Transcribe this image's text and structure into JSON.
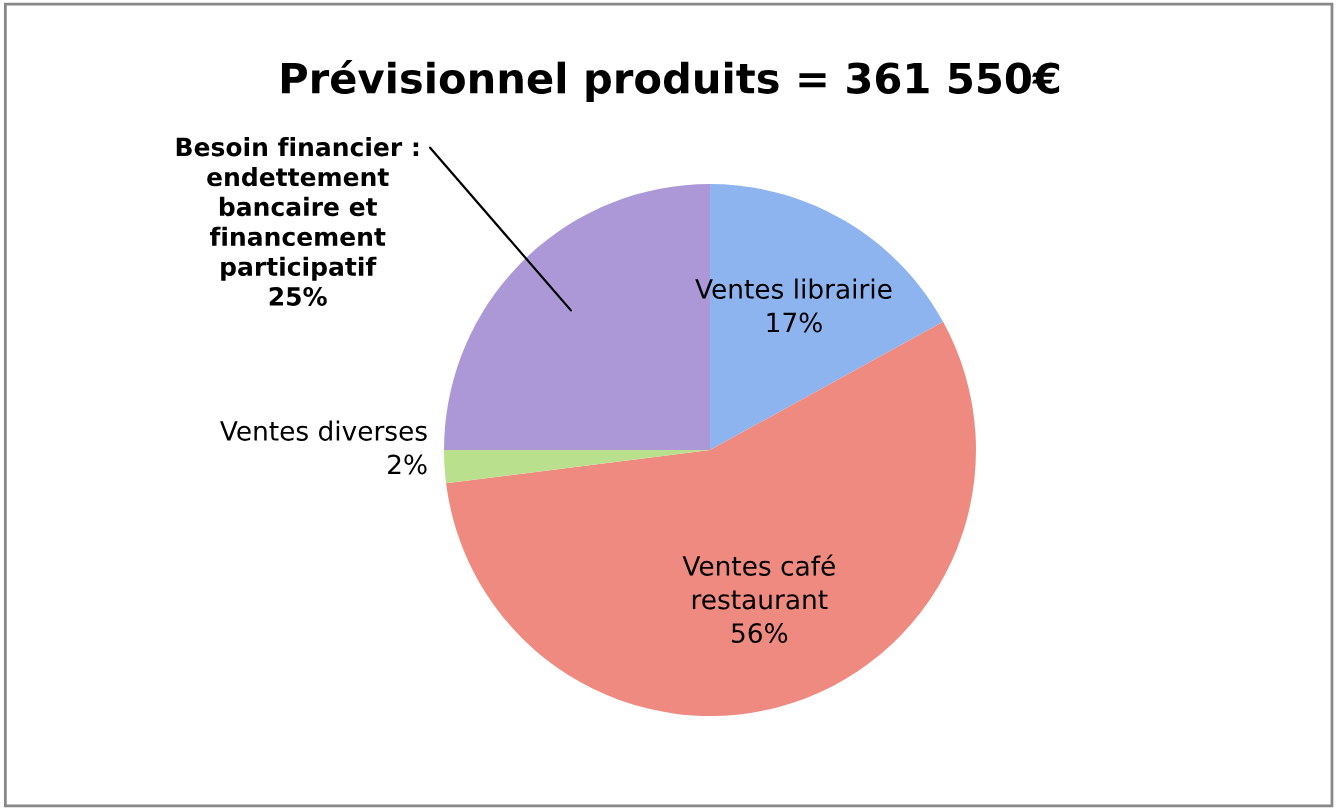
{
  "chart_data": {
    "type": "pie",
    "title": "Prévisionnel produits = 361 550€",
    "categories": [
      "Ventes librairie",
      "Ventes café\nrestaurant",
      "Ventes diverses",
      "Besoin financier :\nendettement\nbancaire et\nfinancement\nparticipatif"
    ],
    "values": [
      17,
      56,
      2,
      25
    ],
    "value_labels": [
      "17%",
      "56%",
      "2%",
      "25%"
    ],
    "colors": [
      "#8db4ef",
      "#ef8a80",
      "#b9e08c",
      "#ac98d6"
    ],
    "legend": false
  }
}
